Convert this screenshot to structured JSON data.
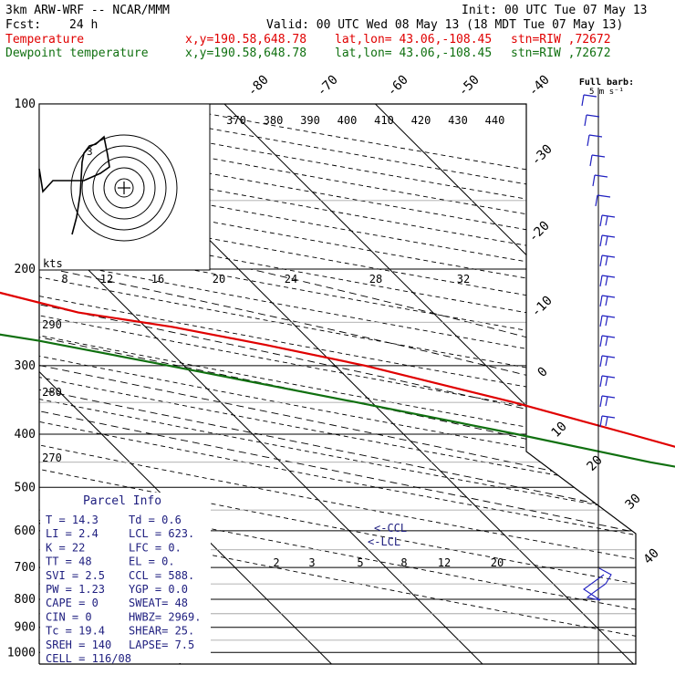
{
  "header": {
    "model": "3km ARW-WRF -- NCAR/MMM",
    "init": "Init: 00 UTC Tue 07 May 13",
    "fcst_label": "Fcst:",
    "fcst_value": "24 h",
    "valid": "Valid: 00 UTC Wed 08 May 13 (18 MDT Tue 07 May 13)",
    "temp_label": "Temperature",
    "dew_label": "Dewpoint temperature",
    "xy": "x,y=190.58,648.78",
    "latlon": "lat,lon= 43.06,-108.45",
    "stn": "stn=RIW ,72672"
  },
  "colors": {
    "temperature": "#e00000",
    "dewpoint": "#107010",
    "wind": "#2020c0",
    "parcel": "#202080"
  },
  "chart_data": {
    "type": "line",
    "plot": "Skew-T log-P sounding",
    "y_axis": "pressure (hPa)",
    "pressure_ticks": [
      100,
      200,
      300,
      400,
      500,
      600,
      700,
      800,
      900,
      1000
    ],
    "isotherm_labels": [
      "-80",
      "-70",
      "-60",
      "-50",
      "-40",
      "-30",
      "-20",
      "-10",
      "0",
      "10",
      "20",
      "30",
      "40"
    ],
    "theta_labels_top": [
      "370",
      "380",
      "390",
      "400",
      "410",
      "420",
      "430",
      "440"
    ],
    "theta_labels_left": [
      "290",
      "280",
      "270"
    ],
    "mixing_ratio_labels": [
      "2",
      "3",
      "5",
      "8",
      "12",
      "20"
    ],
    "hodograph_labels": {
      "kts": "kts",
      "rings": [
        "8",
        "12",
        "16",
        "20",
        "24",
        "28",
        "32"
      ],
      "point_3": "3"
    },
    "ccl_label": "<-CCL",
    "lcl_label": "<-LCL",
    "full_barb_label": "Full barb:",
    "full_barb_value": "5 m s⁻¹",
    "series": [
      {
        "name": "Temperature",
        "points": [
          [
            780,
            14.3
          ],
          [
            750,
            10.6
          ],
          [
            700,
            7.0
          ],
          [
            650,
            3.8
          ],
          [
            600,
            1.2
          ],
          [
            550,
            -2.2
          ],
          [
            500,
            -6.0
          ],
          [
            450,
            -10.2
          ],
          [
            400,
            -15.0
          ],
          [
            350,
            -20.6
          ],
          [
            300,
            -28.0
          ],
          [
            275,
            -33.2
          ],
          [
            255,
            -38.2
          ],
          [
            240,
            -43.5
          ],
          [
            200,
            -52.0
          ],
          [
            180,
            -52.8
          ],
          [
            160,
            -53.4
          ],
          [
            140,
            -54.5
          ],
          [
            120,
            -55.8
          ],
          [
            100,
            -57.5
          ]
        ]
      },
      {
        "name": "Dewpoint temperature",
        "points": [
          [
            775,
            0.6
          ],
          [
            760,
            -4.0
          ],
          [
            740,
            -4.8
          ],
          [
            720,
            -3.6
          ],
          [
            700,
            -2.4
          ],
          [
            680,
            -0.5
          ],
          [
            660,
            2.2
          ],
          [
            640,
            3.2
          ],
          [
            620,
            3.6
          ],
          [
            600,
            2.8
          ],
          [
            550,
            -1.0
          ],
          [
            500,
            -7.8
          ],
          [
            450,
            -15.5
          ],
          [
            400,
            -22.5
          ],
          [
            350,
            -31.0
          ],
          [
            300,
            -41.0
          ],
          [
            270,
            -48.0
          ],
          [
            250,
            -54.5
          ],
          [
            230,
            -59.5
          ],
          [
            215,
            -63.5
          ],
          [
            200,
            -70.0
          ],
          [
            185,
            -76.5
          ],
          [
            170,
            -79.0
          ],
          [
            160,
            -80.5
          ],
          [
            150,
            -80.0
          ],
          [
            140,
            -81.0
          ],
          [
            130,
            -86.0
          ],
          [
            120,
            -88.0
          ],
          [
            100,
            -95.0
          ]
        ]
      }
    ]
  },
  "parcel_info": {
    "title": "Parcel Info",
    "rows": [
      {
        "a": "T   =   14.3",
        "b": "Td  =   0.6"
      },
      {
        "a": "LI  =    2.4",
        "b": "LCL =  623."
      },
      {
        "a": "K   =     22",
        "b": "LFC =    0."
      },
      {
        "a": "TT  =     48",
        "b": "EL  =    0."
      },
      {
        "a": "SVI =    2.5",
        "b": "CCL =  588."
      },
      {
        "a": "PW  =   1.23",
        "b": "YGP =   0.0"
      },
      {
        "a": "CAPE =     0",
        "b": "SWEAT=   48"
      },
      {
        "a": "CIN  =     0",
        "b": "HWBZ= 2969."
      },
      {
        "a": "Tc   =  19.4",
        "b": "SHEAR=  25."
      },
      {
        "a": "SREH =   140",
        "b": "LAPSE=  7.5"
      },
      {
        "a": "CELL = 116/08",
        "b": ""
      }
    ]
  }
}
